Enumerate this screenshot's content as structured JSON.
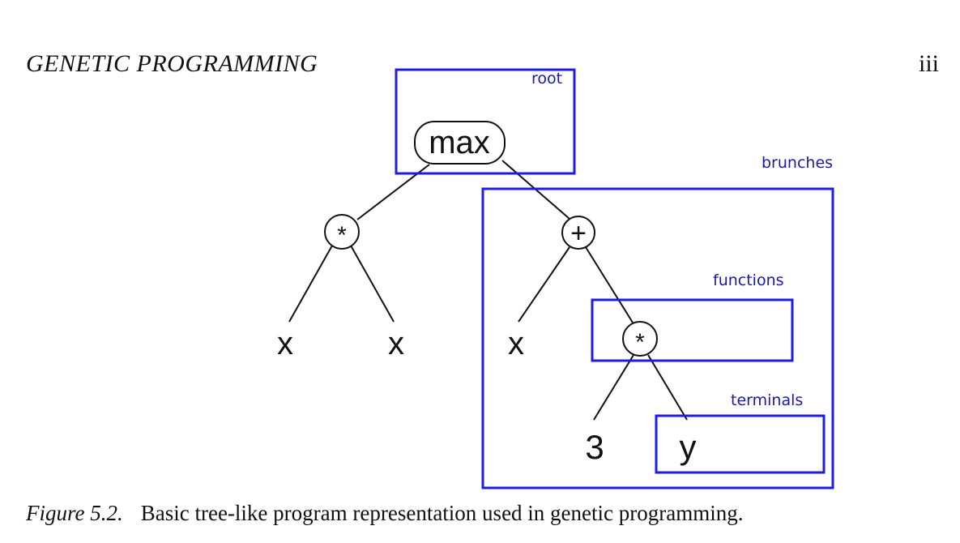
{
  "page": {
    "running_head": "GENETIC PROGRAMMING",
    "page_number": "iii"
  },
  "figure": {
    "nodes": {
      "root": "max",
      "left_function": "*",
      "left_terminal_1": "x",
      "left_terminal_2": "x",
      "right_function": "+",
      "right_terminal_1": "x",
      "inner_function": "*",
      "inner_terminal_1": "3",
      "inner_terminal_2": "y"
    },
    "annotations": {
      "root": "root",
      "branches": "brunches",
      "functions": "functions",
      "terminals": "terminals"
    },
    "colors": {
      "annotation": "#1c1ce0",
      "annotation_text": "#1a1aa6",
      "tree": "#111111"
    }
  },
  "caption": {
    "label": "Figure 5.2.",
    "text": "Basic tree-like program representation used in genetic programming."
  }
}
